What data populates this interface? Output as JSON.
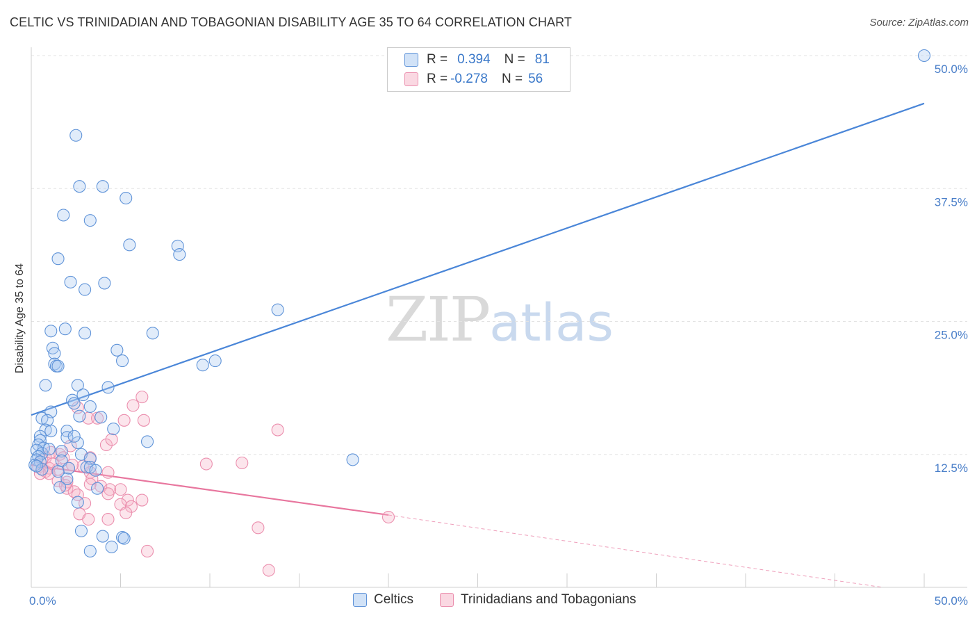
{
  "header": {
    "title": "CELTIC VS TRINIDADIAN AND TOBAGONIAN DISABILITY AGE 35 TO 64 CORRELATION CHART",
    "source": "Source: ZipAtlas.com"
  },
  "watermark": {
    "zip": "ZIP",
    "atlas": "atlas"
  },
  "legend": {
    "rows": [
      {
        "r_label": "R =",
        "r_value": "0.394",
        "n_label": "N =",
        "n_value": "81",
        "color": "#a9c8f0"
      },
      {
        "r_label": "R =",
        "r_value": "-0.278",
        "n_label": "N =",
        "n_value": "56",
        "color": "#f5b5c8"
      }
    ]
  },
  "bottom_legend": {
    "series1": "Celtics",
    "series2": "Trinidadians and Tobagonians"
  },
  "chart_data": {
    "type": "scatter",
    "title": "CELTIC VS TRINIDADIAN AND TOBAGONIAN DISABILITY AGE 35 TO 64 CORRELATION CHART",
    "xlabel": "",
    "ylabel": "Disability Age 35 to 64",
    "xlim": [
      0,
      50
    ],
    "ylim": [
      0,
      50
    ],
    "x_tick_labels": [
      "0.0%",
      "50.0%"
    ],
    "y_tick_labels": [
      "12.5%",
      "25.0%",
      "37.5%",
      "50.0%"
    ],
    "y_ticks": [
      12.5,
      25.0,
      37.5,
      50.0
    ],
    "grid": true,
    "colors": {
      "celtics": "#4a86d8",
      "trinidadians": "#e8769e"
    },
    "series": [
      {
        "name": "Celtics",
        "trend": {
          "x": [
            0,
            50
          ],
          "y": [
            16.2,
            45.5
          ]
        },
        "points": [
          [
            2.5,
            42.5
          ],
          [
            2.7,
            37.7
          ],
          [
            4.0,
            37.7
          ],
          [
            5.3,
            36.6
          ],
          [
            1.8,
            35.0
          ],
          [
            3.3,
            34.5
          ],
          [
            5.5,
            32.2
          ],
          [
            8.2,
            32.1
          ],
          [
            8.3,
            31.3
          ],
          [
            1.5,
            30.9
          ],
          [
            2.2,
            28.7
          ],
          [
            4.1,
            28.6
          ],
          [
            3.0,
            28.0
          ],
          [
            13.8,
            26.1
          ],
          [
            1.9,
            24.3
          ],
          [
            1.1,
            24.1
          ],
          [
            3.0,
            23.9
          ],
          [
            6.8,
            23.9
          ],
          [
            1.2,
            22.5
          ],
          [
            4.8,
            22.3
          ],
          [
            1.3,
            22.0
          ],
          [
            5.1,
            21.3
          ],
          [
            10.3,
            21.3
          ],
          [
            1.3,
            21.0
          ],
          [
            1.4,
            20.8
          ],
          [
            9.6,
            20.9
          ],
          [
            1.5,
            20.8
          ],
          [
            0.8,
            19.0
          ],
          [
            2.6,
            19.0
          ],
          [
            4.3,
            18.8
          ],
          [
            2.9,
            18.1
          ],
          [
            2.3,
            17.6
          ],
          [
            2.4,
            17.3
          ],
          [
            3.3,
            17.0
          ],
          [
            1.1,
            16.5
          ],
          [
            2.7,
            16.1
          ],
          [
            3.9,
            16.0
          ],
          [
            0.6,
            15.9
          ],
          [
            0.9,
            15.7
          ],
          [
            0.8,
            14.8
          ],
          [
            1.1,
            14.7
          ],
          [
            2.0,
            14.7
          ],
          [
            4.6,
            14.9
          ],
          [
            0.5,
            14.2
          ],
          [
            2.0,
            14.1
          ],
          [
            0.5,
            13.8
          ],
          [
            6.5,
            13.7
          ],
          [
            2.6,
            13.6
          ],
          [
            0.4,
            13.4
          ],
          [
            0.7,
            13.1
          ],
          [
            0.3,
            12.9
          ],
          [
            1.7,
            12.8
          ],
          [
            0.6,
            12.6
          ],
          [
            2.8,
            12.5
          ],
          [
            0.4,
            12.3
          ],
          [
            0.3,
            12.0
          ],
          [
            3.3,
            12.1
          ],
          [
            1.7,
            11.9
          ],
          [
            0.5,
            11.8
          ],
          [
            0.2,
            11.5
          ],
          [
            3.1,
            11.3
          ],
          [
            3.3,
            11.3
          ],
          [
            2.1,
            11.2
          ],
          [
            0.6,
            11.1
          ],
          [
            3.6,
            11.0
          ],
          [
            2.0,
            10.2
          ],
          [
            1.6,
            9.4
          ],
          [
            3.7,
            9.3
          ],
          [
            2.6,
            8.0
          ],
          [
            18.0,
            12.0
          ],
          [
            0.3,
            11.4
          ],
          [
            1.5,
            10.9
          ],
          [
            2.8,
            5.3
          ],
          [
            4.0,
            4.8
          ],
          [
            5.1,
            4.7
          ],
          [
            5.2,
            4.6
          ],
          [
            4.5,
            3.8
          ],
          [
            3.3,
            3.4
          ],
          [
            50.0,
            50.0
          ],
          [
            2.4,
            14.2
          ],
          [
            1.0,
            13.0
          ]
        ]
      },
      {
        "name": "Trinidadians and Tobagonians",
        "trend": {
          "x": [
            0,
            20
          ],
          "y": [
            11.5,
            6.8
          ],
          "dashed_to": [
            50,
            0.0
          ]
        },
        "points": [
          [
            6.2,
            17.9
          ],
          [
            5.7,
            17.1
          ],
          [
            2.6,
            16.9
          ],
          [
            3.2,
            15.9
          ],
          [
            3.7,
            15.9
          ],
          [
            5.2,
            15.7
          ],
          [
            6.3,
            15.7
          ],
          [
            13.8,
            14.8
          ],
          [
            4.2,
            13.4
          ],
          [
            2.2,
            13.3
          ],
          [
            1.1,
            12.7
          ],
          [
            1.6,
            12.5
          ],
          [
            1.8,
            12.2
          ],
          [
            0.8,
            12.2
          ],
          [
            3.3,
            12.2
          ],
          [
            9.8,
            11.6
          ],
          [
            2.9,
            11.4
          ],
          [
            0.4,
            11.3
          ],
          [
            1.0,
            11.2
          ],
          [
            2.1,
            11.2
          ],
          [
            1.5,
            11.1
          ],
          [
            0.8,
            10.9
          ],
          [
            0.5,
            10.7
          ],
          [
            1.0,
            10.7
          ],
          [
            3.3,
            10.8
          ],
          [
            3.4,
            10.2
          ],
          [
            4.3,
            10.8
          ],
          [
            1.5,
            10.0
          ],
          [
            2.0,
            9.9
          ],
          [
            3.3,
            9.7
          ],
          [
            3.9,
            9.5
          ],
          [
            2.0,
            9.3
          ],
          [
            4.4,
            9.2
          ],
          [
            5.0,
            9.2
          ],
          [
            2.4,
            9.0
          ],
          [
            4.3,
            8.8
          ],
          [
            2.6,
            8.7
          ],
          [
            6.2,
            8.2
          ],
          [
            5.4,
            8.2
          ],
          [
            5.0,
            7.8
          ],
          [
            3.0,
            7.9
          ],
          [
            5.6,
            7.6
          ],
          [
            5.3,
            7.0
          ],
          [
            2.7,
            6.9
          ],
          [
            3.2,
            6.4
          ],
          [
            4.3,
            6.4
          ],
          [
            12.7,
            5.6
          ],
          [
            20.0,
            6.6
          ],
          [
            11.8,
            11.7
          ],
          [
            6.5,
            3.4
          ],
          [
            13.3,
            1.6
          ],
          [
            1.2,
            11.6
          ],
          [
            2.3,
            11.5
          ],
          [
            0.6,
            12.0
          ],
          [
            1.9,
            9.6
          ],
          [
            4.5,
            13.9
          ]
        ]
      }
    ]
  }
}
